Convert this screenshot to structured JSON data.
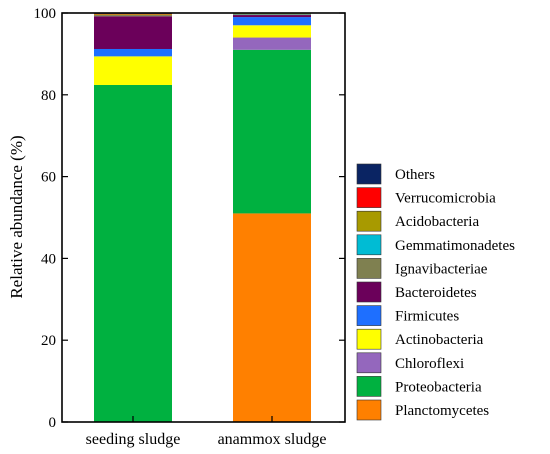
{
  "chart_data": {
    "type": "bar",
    "stacked": true,
    "xlabel": "",
    "ylabel": "Relative abundance (%)",
    "ylim": [
      0,
      100
    ],
    "yticks": [
      0,
      20,
      40,
      60,
      80,
      100
    ],
    "categories": [
      "seeding sludge",
      "anammox sludge"
    ],
    "legend_position": "right",
    "grid": false,
    "series": [
      {
        "name": "Planctomycetes",
        "color": "#FF8000",
        "values": [
          0.0,
          51.0
        ]
      },
      {
        "name": "Proteobacteria",
        "color": "#00B140",
        "values": [
          82.4,
          40.0
        ]
      },
      {
        "name": "Chloroflexi",
        "color": "#9467BD",
        "values": [
          0.0,
          3.0
        ]
      },
      {
        "name": "Actinobacteria",
        "color": "#FFFF00",
        "values": [
          7.0,
          3.0
        ]
      },
      {
        "name": "Firmicutes",
        "color": "#1E6FFF",
        "values": [
          1.8,
          2.0
        ]
      },
      {
        "name": "Bacteroidetes",
        "color": "#6B005A",
        "values": [
          8.0,
          0.5
        ]
      },
      {
        "name": "Ignavibacteriae",
        "color": "#7F8050",
        "values": [
          0.3,
          0.2
        ]
      },
      {
        "name": "Gemmatimonadetes",
        "color": "#00BCD4",
        "values": [
          0.0,
          0.1
        ]
      },
      {
        "name": "Acidobacteria",
        "color": "#A89A00",
        "values": [
          0.2,
          0.1
        ]
      },
      {
        "name": "Verrucomicrobia",
        "color": "#FF0000",
        "values": [
          0.1,
          0.0
        ]
      },
      {
        "name": "Others",
        "color": "#0A2463",
        "values": [
          0.2,
          0.1
        ]
      }
    ]
  }
}
